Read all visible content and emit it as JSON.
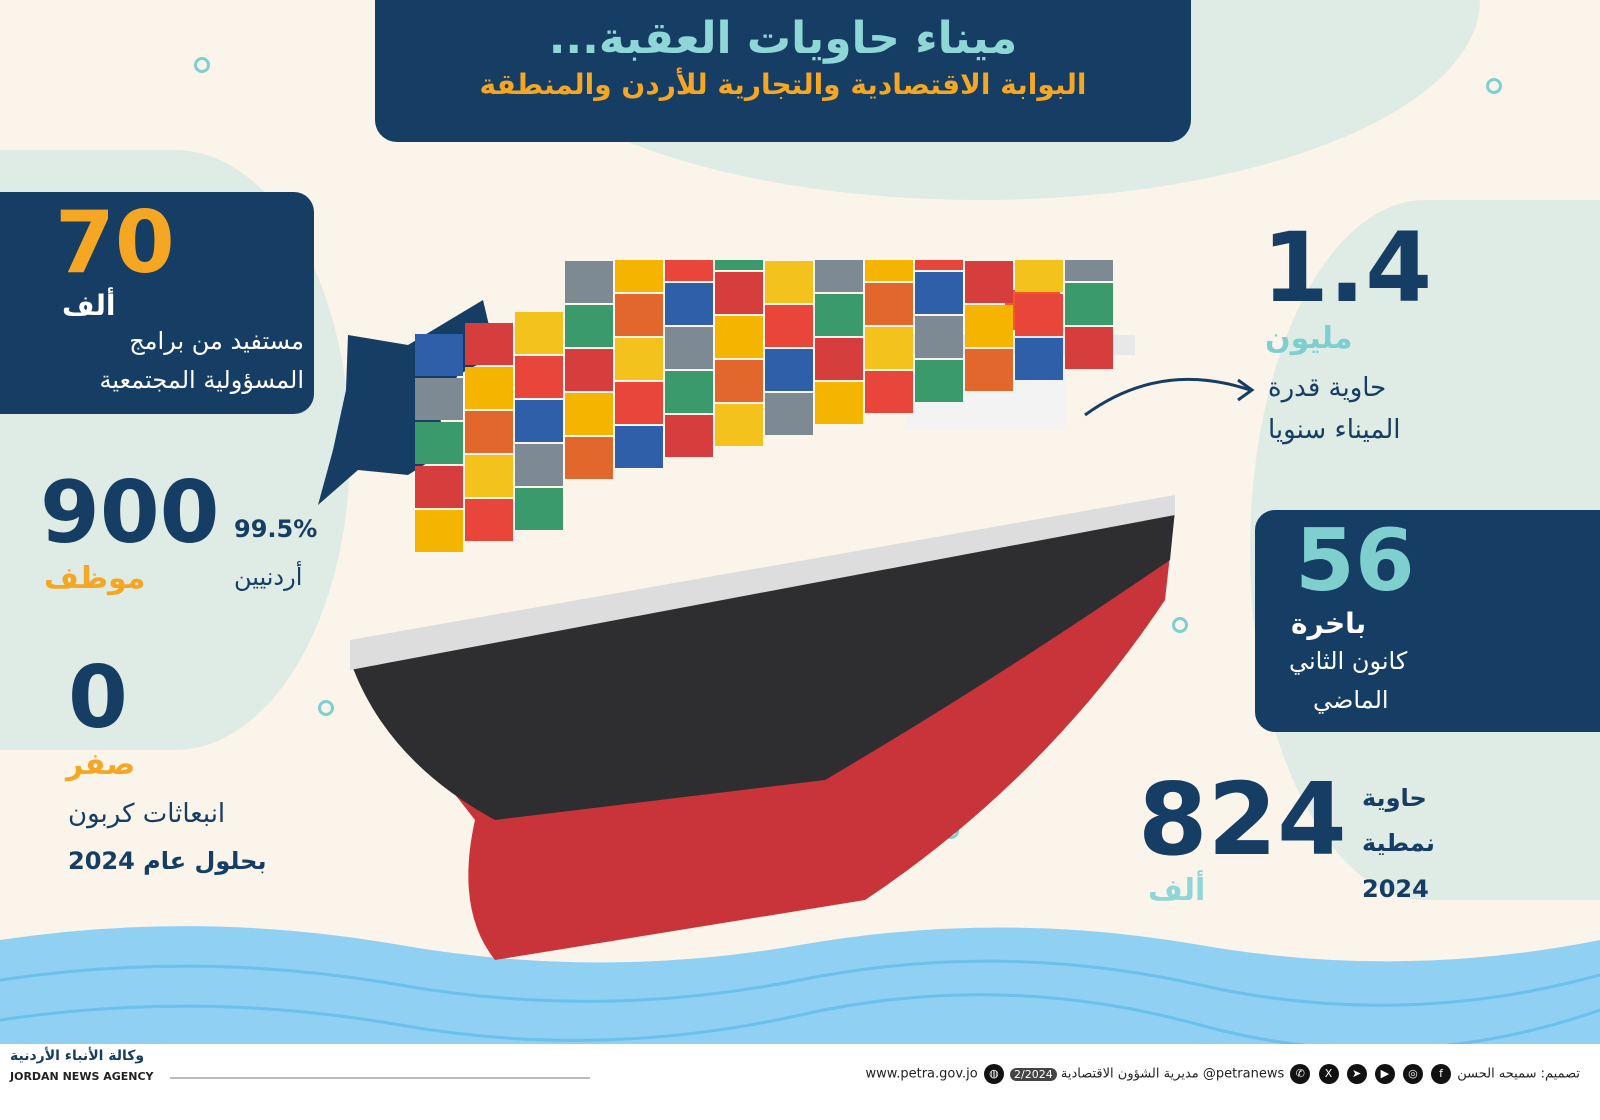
{
  "title": {
    "line1": "ميناء حاويات العقبة...",
    "line2": "البوابة الاقتصادية والتجارية للأردن والمنطقة"
  },
  "stats": {
    "beneficiaries": {
      "number": "70",
      "unit": "ألف",
      "desc1": "مستفيد من برامج",
      "desc2": "المسؤولية المجتمعية"
    },
    "employees": {
      "number": "900",
      "unit": "موظف",
      "percent": "99.5%",
      "percent_label": "أردنيين"
    },
    "emissions": {
      "number": "0",
      "unit": "صفر",
      "desc1": "انبعاثات كربون",
      "desc2": "بحلول عام 2024"
    },
    "capacity": {
      "number": "1.4",
      "unit": "مليون",
      "desc1": "حاوية قدرة",
      "desc2": "الميناء سنويا"
    },
    "ships": {
      "number": "56",
      "unit": "باخرة",
      "desc1": "كانون الثاني",
      "desc2": "الماضي"
    },
    "containers": {
      "number": "824",
      "unit": "ألف",
      "desc1": "حاوية",
      "desc2": "نمطية",
      "desc3": "2024"
    }
  },
  "footer": {
    "agency_ar": "وكالة الأنباء الأردنية",
    "agency_en": "JORDAN NEWS AGENCY",
    "designer": "تصميم: سميحه الحسن",
    "handle": "@petranews",
    "issue": "2/2024",
    "department": "مديرية الشؤون الاقتصادية",
    "website": "www.petra.gov.jo",
    "social_icons": [
      "facebook-icon",
      "instagram-icon",
      "youtube-icon",
      "telegram-icon",
      "x-icon",
      "whatsapp-icon"
    ]
  },
  "colors": {
    "navy": "#163d63",
    "orange": "#f5a623",
    "teal": "#7fcfcf",
    "background": "#fbf4ea",
    "wave": "#8fd0f3"
  }
}
